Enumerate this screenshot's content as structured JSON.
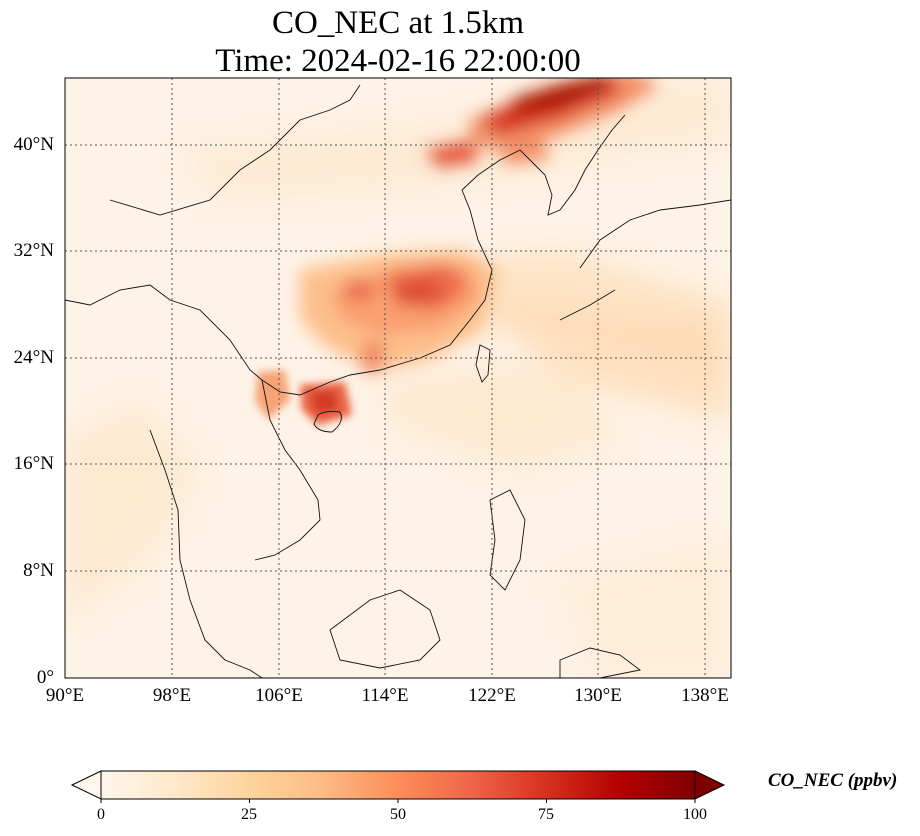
{
  "title": {
    "line1": "CO_NEC at 1.5km",
    "line2": "Time: 2024-02-16 22:00:00"
  },
  "map": {
    "extent": {
      "lon": [
        90,
        140
      ],
      "lat": [
        0,
        45
      ]
    },
    "lon_ticks": [
      "90°E",
      "98°E",
      "106°E",
      "114°E",
      "122°E",
      "130°E",
      "138°E"
    ],
    "lat_ticks": [
      "0°",
      "8°N",
      "16°N",
      "24°N",
      "32°N",
      "40°N"
    ],
    "gridlines": "dotted",
    "colormap": "OrRd",
    "plumes": [
      {
        "region": "Northeast China / Korea",
        "level": "high",
        "value_approx": 95
      },
      {
        "region": "Central / East China",
        "level": "medium-high",
        "value_approx": 65
      },
      {
        "region": "Gulf of Tonkin / Hainan",
        "level": "medium-high",
        "value_approx": 65
      },
      {
        "region": "Western Pacific outflow",
        "level": "low",
        "value_approx": 20
      }
    ]
  },
  "colorbar": {
    "label": "CO_NEC (ppbv)",
    "ticks": [
      "0",
      "25",
      "50",
      "75",
      "100"
    ],
    "range": [
      0,
      100
    ],
    "extend": "both",
    "colors": [
      "#fff7ec",
      "#fee8c8",
      "#fdd49e",
      "#fdbb84",
      "#fc8d59",
      "#ef6548",
      "#d7301f",
      "#b30000",
      "#7f0000"
    ]
  }
}
